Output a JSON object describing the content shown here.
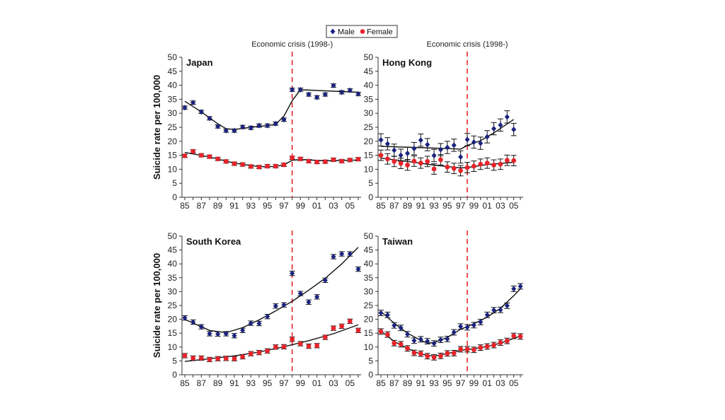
{
  "chart_data": {
    "type": "scatter",
    "title": "",
    "legend": {
      "placement": "top-center",
      "entries": [
        {
          "name": "Male",
          "marker": "diamond",
          "color": "#1a237e"
        },
        {
          "name": "Female",
          "marker": "circle",
          "color": "#e8232a"
        }
      ]
    },
    "annotation": {
      "text": "Economic crisis (1998-)",
      "x": 98,
      "color": "#e8232a",
      "style": "dashed"
    },
    "ylabel": "Suicide rate per 100,000",
    "xlabel": "",
    "x": [
      85,
      86,
      87,
      88,
      89,
      90,
      91,
      92,
      93,
      94,
      95,
      96,
      97,
      98,
      99,
      100,
      101,
      102,
      103,
      104,
      105,
      106
    ],
    "xtick_labels": [
      "85",
      "87",
      "89",
      "91",
      "93",
      "95",
      "97",
      "99",
      "01",
      "03",
      "05"
    ],
    "ylim": [
      0,
      50
    ],
    "ytick_labels": [
      "0",
      "5",
      "10",
      "15",
      "20",
      "25",
      "30",
      "35",
      "40",
      "45",
      "50"
    ],
    "grid": false,
    "panels": [
      {
        "title": "Japan",
        "show_ylabel": true,
        "show_annotation": true,
        "errorbar_size": 0.6,
        "series": [
          {
            "name": "Male",
            "values": [
              32,
              33.8,
              30.5,
              28.2,
              25.3,
              23.8,
              23.8,
              25.1,
              24.8,
              25.6,
              25.6,
              26.3,
              27.7,
              38.4,
              38.4,
              36.7,
              35.7,
              36.7,
              39.9,
              37.5,
              38.2,
              36.9
            ],
            "trend": [
              [
                85,
                34.3
              ],
              [
                87,
                30.5
              ],
              [
                89,
                26.2
              ],
              [
                90,
                24.5
              ],
              [
                91,
                24.2
              ],
              [
                93,
                25
              ],
              [
                95,
                25.6
              ],
              [
                96,
                26
              ],
              [
                97,
                29
              ],
              [
                98,
                34.5
              ],
              [
                99,
                38.4
              ],
              [
                106,
                37.5
              ]
            ]
          },
          {
            "name": "Female",
            "values": [
              14.8,
              16.4,
              15,
              14.5,
              13.7,
              12.8,
              12,
              11.7,
              11,
              10.8,
              11.1,
              11.1,
              11.6,
              14.1,
              13.7,
              12.9,
              12.6,
              12.7,
              13.4,
              12.9,
              13.3,
              13.6
            ],
            "trend": [
              [
                85,
                16
              ],
              [
                88,
                14.4
              ],
              [
                91,
                12.2
              ],
              [
                94,
                10.9
              ],
              [
                96,
                11.0
              ],
              [
                97,
                11.6
              ],
              [
                98,
                13.2
              ],
              [
                99,
                13.5
              ],
              [
                102,
                13
              ],
              [
                106,
                13.3
              ]
            ]
          }
        ]
      },
      {
        "title": "Hong Kong",
        "show_ylabel": false,
        "show_annotation": true,
        "errorbar_size": 2.2,
        "series": [
          {
            "name": "Male",
            "values": [
              20.5,
              19.1,
              16.8,
              15,
              15.7,
              17.4,
              20.4,
              18.8,
              14.9,
              17,
              17.8,
              18.6,
              14.4,
              20.6,
              19.7,
              19.3,
              21.6,
              24.5,
              25.8,
              28.7,
              24.2
            ],
            "trend": [
              [
                85,
                18.2
              ],
              [
                90,
                17.8
              ],
              [
                95,
                17.4
              ],
              [
                97,
                17.2
              ],
              [
                98,
                18.5
              ],
              [
                100,
                20.2
              ],
              [
                102,
                23
              ],
              [
                105,
                27.8
              ]
            ]
          },
          {
            "name": "Female",
            "values": [
              15,
              13.7,
              12.8,
              12.1,
              11.5,
              12.9,
              12.2,
              12.8,
              10.1,
              13.4,
              10.8,
              10.3,
              9.5,
              10.6,
              11.1,
              11.8,
              12.2,
              11.5,
              11.8,
              13.2,
              13.1
            ],
            "trend": [
              [
                85,
                14
              ],
              [
                89,
                12.8
              ],
              [
                93,
                11.5
              ],
              [
                97,
                10.5
              ],
              [
                98,
                10.6
              ],
              [
                101,
                11.7
              ],
              [
                105,
                12.5
              ]
            ]
          }
        ]
      },
      {
        "title": "South Korea",
        "show_ylabel": true,
        "show_annotation": false,
        "errorbar_size": 0.8,
        "series": [
          {
            "name": "Male",
            "values": [
              20.5,
              19,
              17.3,
              14.8,
              14.7,
              14.8,
              14.1,
              16,
              18.6,
              18.5,
              21,
              24.8,
              25.2,
              36.6,
              29.3,
              26.2,
              28.1,
              34.1,
              42.6,
              43.6,
              43.6,
              38.1
            ],
            "trend": [
              [
                85,
                20
              ],
              [
                88,
                16
              ],
              [
                90,
                15.2
              ],
              [
                92,
                17
              ],
              [
                94,
                19.8
              ],
              [
                96,
                23
              ],
              [
                98,
                26.5
              ],
              [
                100,
                30.5
              ],
              [
                102,
                34.8
              ],
              [
                104,
                40
              ],
              [
                106,
                46
              ]
            ]
          },
          {
            "name": "Female",
            "values": [
              6.9,
              6,
              6,
              5.5,
              5.8,
              5.9,
              5.8,
              6.5,
              7.6,
              8,
              8.6,
              10,
              10.1,
              12.8,
              11.2,
              10.3,
              10.5,
              13.5,
              16.8,
              17.5,
              19.3,
              16
            ],
            "trend": [
              [
                85,
                4.8
              ],
              [
                88,
                5.8
              ],
              [
                91,
                6.8
              ],
              [
                94,
                8.2
              ],
              [
                97,
                10.1
              ],
              [
                100,
                12.3
              ],
              [
                103,
                14.8
              ],
              [
                106,
                18
              ]
            ]
          }
        ]
      },
      {
        "title": "Taiwan",
        "show_ylabel": false,
        "show_annotation": false,
        "errorbar_size": 1.0,
        "series": [
          {
            "name": "Male",
            "values": [
              22.3,
              21.6,
              17.8,
              16.9,
              14.6,
              12.3,
              12.8,
              12.1,
              11.3,
              12.6,
              12.9,
              15.3,
              17.4,
              17.1,
              17.9,
              19,
              21.6,
              23.3,
              23.4,
              24.9,
              31,
              31.9
            ],
            "trend": [
              [
                85,
                22.8
              ],
              [
                87,
                18.6
              ],
              [
                89,
                15
              ],
              [
                91,
                12.4
              ],
              [
                92,
                11.4
              ],
              [
                93,
                11.6
              ],
              [
                95,
                13.5
              ],
              [
                97,
                16.4
              ],
              [
                99,
                18.4
              ],
              [
                101,
                20.8
              ],
              [
                103,
                24
              ],
              [
                105,
                28.5
              ],
              [
                106,
                31
              ]
            ]
          },
          {
            "name": "Female",
            "values": [
              15.6,
              14.5,
              11.4,
              11,
              9.5,
              7.9,
              7.6,
              6.7,
              6.3,
              6.8,
              7.7,
              7.8,
              9.2,
              9.2,
              9.0,
              9.8,
              10.2,
              10.7,
              11.6,
              12.2,
              14,
              13.8
            ],
            "trend": [
              [
                85,
                15.8
              ],
              [
                87,
                12
              ],
              [
                89,
                9.5
              ],
              [
                91,
                7.4
              ],
              [
                93,
                6.7
              ],
              [
                95,
                7.6
              ],
              [
                97,
                8.8
              ],
              [
                99,
                9.4
              ],
              [
                101,
                10.2
              ],
              [
                103,
                11.4
              ],
              [
                106,
                14
              ]
            ]
          }
        ]
      }
    ]
  }
}
